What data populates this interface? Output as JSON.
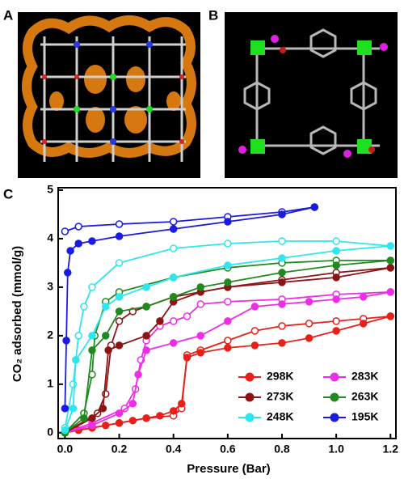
{
  "panels": [
    {
      "label": "A"
    },
    {
      "label": "B"
    }
  ],
  "chart_data": {
    "type": "line",
    "panel_label": "C",
    "x_label": "Pressure (Bar)",
    "y_label": "CO₂ adsorbed (mmol/g)",
    "xlim": [
      -0.025,
      1.22
    ],
    "ylim": [
      -0.12,
      5.05
    ],
    "xticks": [
      {
        "value": 0,
        "label": "0.0"
      },
      0.2,
      0.4,
      0.6,
      0.8,
      {
        "value": 1,
        "label": "1.0"
      },
      1.2
    ],
    "yticks": [
      0,
      1,
      2,
      3,
      4,
      5
    ],
    "legend": "lower right",
    "series": [
      {
        "name": "298K",
        "color": "#e8201a",
        "x": [
          0,
          0.05,
          0.1,
          0.15,
          0.2,
          0.25,
          0.3,
          0.35,
          0.4,
          0.43,
          0.45,
          0.5,
          0.6,
          0.7,
          0.8,
          0.9,
          1.0,
          1.1,
          1.2
        ],
        "values": [
          0,
          0.05,
          0.1,
          0.15,
          0.2,
          0.25,
          0.3,
          0.35,
          0.45,
          0.6,
          1.55,
          1.65,
          1.75,
          1.8,
          1.85,
          1.95,
          2.1,
          2.25,
          2.4
        ],
        "desorption": {
          "x": [
            1.2,
            1.1,
            1.0,
            0.9,
            0.8,
            0.7,
            0.6,
            0.5,
            0.45,
            0.43,
            0.4,
            0.3,
            0.2,
            0.1,
            0
          ],
          "values": [
            2.4,
            2.35,
            2.3,
            2.25,
            2.2,
            2.1,
            1.9,
            1.7,
            1.6,
            0.5,
            0.35,
            0.3,
            0.2,
            0.1,
            0
          ]
        }
      },
      {
        "name": "283K",
        "color": "#ee2ee6",
        "x": [
          0,
          0.1,
          0.2,
          0.25,
          0.27,
          0.3,
          0.4,
          0.5,
          0.6,
          0.7,
          0.8,
          0.9,
          1.0,
          1.1,
          1.2
        ],
        "values": [
          0,
          0.15,
          0.4,
          0.6,
          1.2,
          1.7,
          1.85,
          2.0,
          2.3,
          2.6,
          2.65,
          2.7,
          2.75,
          2.8,
          2.9
        ],
        "desorption": {
          "x": [
            1.2,
            1.0,
            0.8,
            0.6,
            0.5,
            0.45,
            0.4,
            0.35,
            0.3,
            0.28,
            0.26,
            0.22,
            0.1,
            0
          ],
          "values": [
            2.9,
            2.85,
            2.75,
            2.7,
            2.65,
            2.4,
            2.3,
            2.2,
            1.9,
            1.5,
            0.9,
            0.5,
            0.2,
            0
          ]
        }
      },
      {
        "name": "273K",
        "color": "#8b1414",
        "x": [
          0,
          0.1,
          0.14,
          0.16,
          0.2,
          0.3,
          0.35,
          0.4,
          0.5,
          0.6,
          0.8,
          1.0,
          1.2
        ],
        "values": [
          0,
          0.3,
          0.5,
          1.7,
          1.8,
          2.0,
          2.3,
          2.7,
          2.9,
          3.0,
          3.1,
          3.2,
          3.4
        ],
        "desorption": {
          "x": [
            1.2,
            1.0,
            0.8,
            0.6,
            0.4,
            0.3,
            0.25,
            0.2,
            0.17,
            0.15,
            0.12,
            0
          ],
          "values": [
            3.4,
            3.3,
            3.15,
            3.0,
            2.8,
            2.6,
            2.5,
            2.3,
            1.8,
            0.8,
            0.4,
            0
          ]
        }
      },
      {
        "name": "263K",
        "color": "#1f8a1f",
        "x": [
          0,
          0.07,
          0.1,
          0.15,
          0.2,
          0.3,
          0.4,
          0.5,
          0.6,
          0.8,
          1.0,
          1.2
        ],
        "values": [
          0,
          0.3,
          1.7,
          2.0,
          2.5,
          2.6,
          2.8,
          3.0,
          3.1,
          3.3,
          3.45,
          3.55
        ],
        "desorption": {
          "x": [
            1.2,
            1.0,
            0.8,
            0.6,
            0.4,
            0.2,
            0.15,
            0.11,
            0.1,
            0.07,
            0
          ],
          "values": [
            3.55,
            3.55,
            3.5,
            3.4,
            3.2,
            2.9,
            2.7,
            2.0,
            1.2,
            0.4,
            0
          ]
        }
      },
      {
        "name": "248K",
        "color": "#2ee6ee",
        "x": [
          0,
          0.03,
          0.04,
          0.1,
          0.15,
          0.2,
          0.3,
          0.4,
          0.6,
          0.8,
          1.0,
          1.2
        ],
        "values": [
          0.05,
          0.5,
          1.5,
          2.0,
          2.6,
          2.8,
          3.0,
          3.2,
          3.45,
          3.6,
          3.75,
          3.85
        ],
        "desorption": {
          "x": [
            1.2,
            1.0,
            0.8,
            0.6,
            0.4,
            0.2,
            0.1,
            0.07,
            0.05,
            0.03,
            0
          ],
          "values": [
            3.85,
            3.95,
            3.95,
            3.9,
            3.8,
            3.5,
            3.0,
            2.6,
            2.0,
            1.0,
            0.1
          ]
        }
      },
      {
        "name": "195K",
        "color": "#1a1ae0",
        "x": [
          0,
          0.005,
          0.01,
          0.02,
          0.05,
          0.1,
          0.2,
          0.4,
          0.6,
          0.8,
          0.92
        ],
        "values": [
          0.5,
          1.9,
          3.3,
          3.75,
          3.9,
          3.95,
          4.05,
          4.2,
          4.35,
          4.5,
          4.65
        ],
        "desorption": {
          "x": [
            0.92,
            0.8,
            0.6,
            0.4,
            0.2,
            0.05,
            0
          ],
          "values": [
            4.65,
            4.55,
            4.45,
            4.35,
            4.3,
            4.25,
            4.15
          ]
        }
      }
    ]
  }
}
